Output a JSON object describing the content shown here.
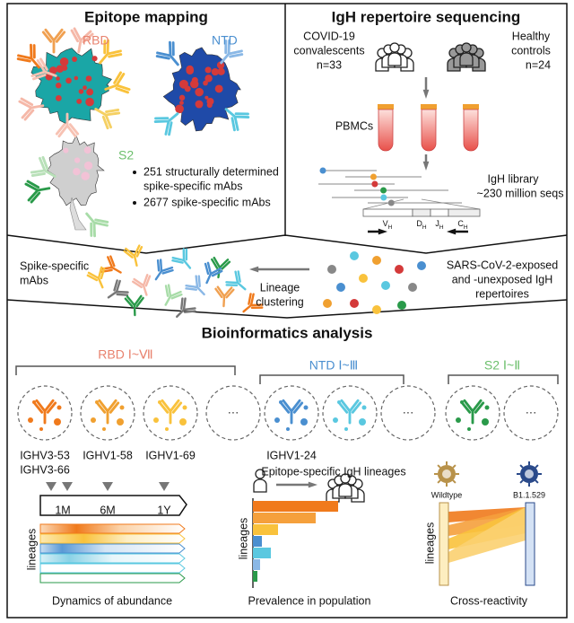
{
  "epitope_mapping": {
    "title": "Epitope mapping",
    "regions": [
      "RBD",
      "NTD",
      "S2"
    ],
    "bullets": [
      [
        "251 structurally determined",
        "spike-specific mAbs"
      ],
      [
        "2677 spike-specific mAbs"
      ]
    ]
  },
  "repertoire_sequencing": {
    "title": "IgH repertoire sequencing",
    "groups": [
      {
        "name": [
          "COVID-19",
          "convalescents"
        ],
        "n": "n=33"
      },
      {
        "name": [
          "Healthy",
          "controls"
        ],
        "n": "n=24"
      }
    ],
    "sample": "PBMCs",
    "library": [
      "IgH library",
      "~230 million seqs"
    ],
    "segments": [
      {
        "gene": "V",
        "sub": "H"
      },
      {
        "gene": "D",
        "sub": "H"
      },
      {
        "gene": "J",
        "sub": "H"
      },
      {
        "gene": "C",
        "sub": "H"
      }
    ]
  },
  "clustering": {
    "mabs": [
      "Spike-specific",
      "mAbs"
    ],
    "process": [
      "Lineage",
      "clustering"
    ],
    "repertoires": [
      "SARS-CoV-2-exposed",
      "and -unexposed IgH",
      "repertoires"
    ]
  },
  "bioinformatics": {
    "title": "Bioinformatics analysis",
    "epitope_groups": [
      "RBD Ⅰ~Ⅶ",
      "NTD Ⅰ~Ⅲ",
      "S2 Ⅰ~Ⅱ"
    ],
    "genes": [
      "IGHV3-53",
      "IGHV3-66",
      "IGHV1-58",
      "IGHV1-69",
      "IGHV1-24"
    ],
    "ellipsis": "···",
    "lineages_label": "Epitope-specific IgH lineages",
    "timepoints": [
      "1M",
      "6M",
      "1Y"
    ],
    "axis_label": "lineages",
    "analyses": [
      "Dynamics of abundance",
      "Prevalence in population",
      "Cross-reactivity"
    ],
    "variants": [
      "Wildtype",
      "B1.1.529"
    ]
  }
}
